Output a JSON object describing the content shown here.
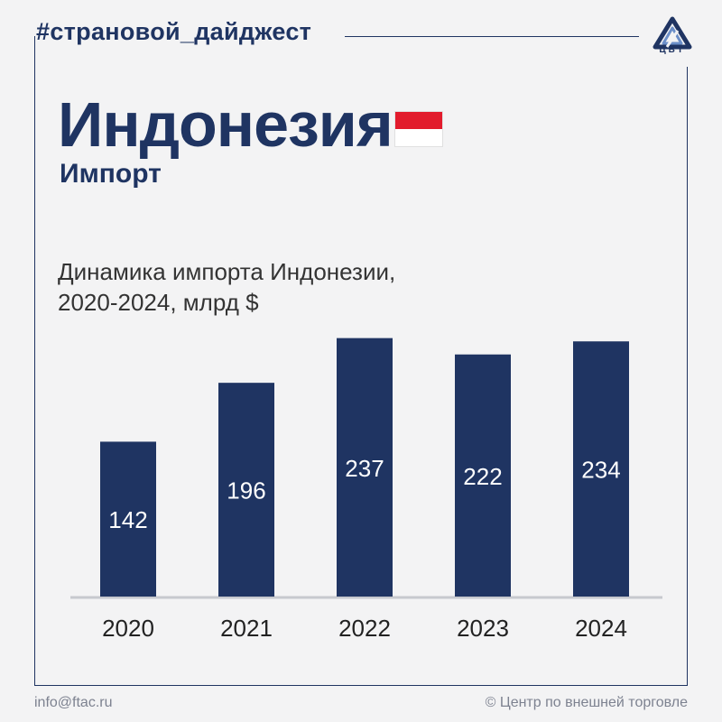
{
  "header": {
    "hashtag": "#страновой_дайджест",
    "logo_text": "ЦВТ"
  },
  "country": "Индонезия",
  "subtitle": "Импорт",
  "chart_title_lines": [
    "Динамика импорта Индонезии,",
    "2020-2024, млрд $"
  ],
  "colors": {
    "bar": "#1f3462",
    "background": "#f3f3f4",
    "flag_red": "#e21b2c",
    "flag_white": "#ffffff"
  },
  "chart_data": {
    "type": "bar",
    "categories": [
      "2020",
      "2021",
      "2022",
      "2023",
      "2024"
    ],
    "values": [
      142,
      196,
      237,
      222,
      234
    ],
    "title": "Динамика импорта Индонезии, 2020-2024, млрд $",
    "xlabel": "",
    "ylabel": "",
    "ylim": [
      0,
      240
    ],
    "grid": false,
    "legend": "none"
  },
  "footer": {
    "email": "info@ftac.ru",
    "copyright": "© Центр по внешней торговле"
  }
}
